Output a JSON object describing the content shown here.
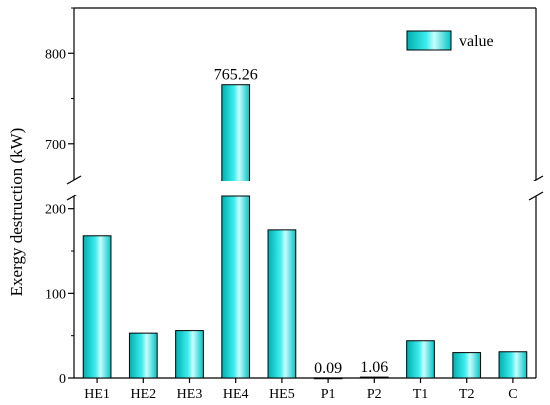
{
  "chart_data": {
    "type": "bar",
    "categories": [
      "HE1",
      "HE2",
      "HE3",
      "HE4",
      "HE5",
      "P1",
      "P2",
      "T1",
      "T2",
      "C"
    ],
    "values": [
      168,
      53,
      56,
      765.26,
      175,
      0.09,
      1.06,
      44,
      30,
      31
    ],
    "data_labels": [
      null,
      null,
      null,
      "765.26",
      null,
      "0.09",
      "1.06",
      null,
      null,
      null
    ],
    "series": [
      {
        "name": "value",
        "values": [
          168,
          53,
          56,
          765.26,
          175,
          0.09,
          1.06,
          44,
          30,
          31
        ]
      }
    ],
    "ylabel": "Exergy destruction (kW)",
    "xlabel": "",
    "y_axis_break": true,
    "y_segments": [
      {
        "range": [
          0,
          215
        ],
        "ticks": [
          0,
          100,
          200
        ],
        "tick_labels": [
          "0",
          "100",
          "200"
        ]
      },
      {
        "range": [
          660,
          850
        ],
        "ticks": [
          700,
          800
        ],
        "tick_labels": [
          "700",
          "800"
        ]
      }
    ],
    "legend": {
      "placement": "top-right",
      "entries": [
        "value"
      ]
    },
    "bar_color": "#00c8c8",
    "bar_highlight": "#bffcfc",
    "grid": false
  }
}
